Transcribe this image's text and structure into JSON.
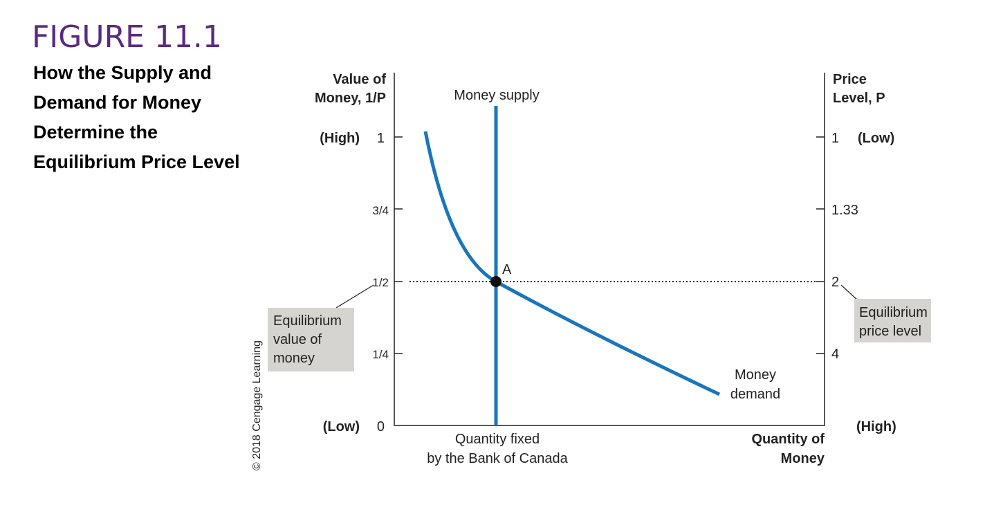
{
  "figure": {
    "number": "FIGURE 11.1",
    "title_lines": [
      "How the Supply and",
      "Demand for Money",
      "Determine the",
      "Equilibrium Price Level"
    ]
  },
  "left_axis": {
    "title_lines": [
      "Value of",
      "Money, 1/P"
    ],
    "ticks": [
      "1",
      "3/4",
      "1/2",
      "1/4",
      "0"
    ],
    "high": "(High)",
    "low": "(Low)"
  },
  "right_axis": {
    "title_lines": [
      "Price",
      "Level, P"
    ],
    "ticks": [
      "1",
      "1.33",
      "2",
      "4"
    ],
    "low": "(Low)",
    "high": "(High)"
  },
  "curves": {
    "supply": "Money supply",
    "demand_lines": [
      "Money",
      "demand"
    ]
  },
  "point": "A",
  "x_axis": {
    "label_lines": [
      "Quantity fixed",
      "by the Bank of Canada"
    ],
    "title_lines": [
      "Quantity of",
      "Money"
    ]
  },
  "callouts": {
    "left": [
      "Equilibrium",
      "value of",
      "money"
    ],
    "right": [
      "Equilibrium",
      "price level"
    ]
  },
  "credit": "© 2018 Cengage Learning"
}
